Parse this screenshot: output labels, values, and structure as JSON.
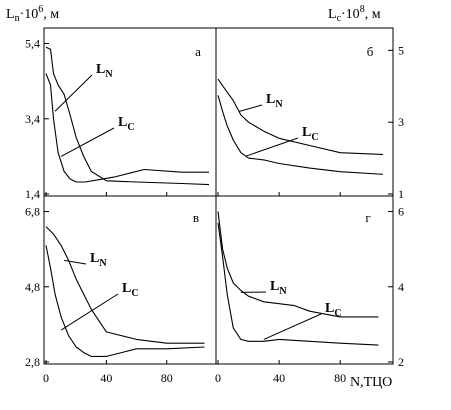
{
  "chart_data": {
    "type": "line",
    "left_axis_title": {
      "main": "L",
      "sub": "n",
      "rest": "·10",
      "sup": "6",
      "unit": ", м"
    },
    "right_axis_title": {
      "main": "L",
      "sub": "c",
      "rest": "·10",
      "sup": "8",
      "unit": ", м"
    },
    "x_axis_title": "N,ТЦО",
    "x_ticks": [
      "0",
      "40",
      "80"
    ],
    "x_tick_values": [
      0,
      40,
      80
    ],
    "xlim": [
      0,
      110
    ],
    "top_left_ticks": [
      "5,4",
      "3,4",
      "1,4"
    ],
    "top_left_tick_values": [
      5.4,
      3.4,
      1.4
    ],
    "top_right_ticks": [
      "5",
      "3",
      "1"
    ],
    "top_right_tick_values": [
      5,
      3,
      1
    ],
    "bottom_left_ticks": [
      "6,8",
      "4,8",
      "2,8"
    ],
    "bottom_left_tick_values": [
      6.8,
      4.8,
      2.8
    ],
    "bottom_right_ticks": [
      "6",
      "4",
      "2"
    ],
    "bottom_right_tick_values": [
      6,
      4,
      2
    ],
    "panels": [
      {
        "id": "a",
        "label": "а",
        "ylim": [
          1.4,
          5.6
        ],
        "series": [
          {
            "name": "LN",
            "x": [
              0,
              3,
              5,
              8,
              12,
              16,
              20,
              25,
              30,
              40,
              60,
              90,
              108
            ],
            "y": [
              5.3,
              5.25,
              4.6,
              4.3,
              4.05,
              3.5,
              2.9,
              2.4,
              2.0,
              1.75,
              1.72,
              1.68,
              1.65
            ]
          },
          {
            "name": "LC",
            "x": [
              0,
              3,
              5,
              8,
              12,
              16,
              20,
              26,
              35,
              45,
              55,
              65,
              90,
              108
            ],
            "y": [
              4.6,
              4.3,
              3.4,
              2.5,
              2.0,
              1.8,
              1.72,
              1.72,
              1.78,
              1.85,
              1.95,
              2.05,
              1.98,
              1.98
            ]
          }
        ],
        "labels": [
          {
            "main": "L",
            "sub": "N",
            "point": [
              6,
              3.6
            ]
          },
          {
            "main": "L",
            "sub": "C",
            "point": [
              10,
              2.4
            ]
          }
        ]
      },
      {
        "id": "b",
        "label": "б",
        "ylim": [
          1.0,
          5.4
        ],
        "series": [
          {
            "name": "LN",
            "x": [
              0,
              5,
              10,
              15,
              20,
              30,
              40,
              60,
              80,
              108
            ],
            "y": [
              4.2,
              3.9,
              3.6,
              3.2,
              3.0,
              2.75,
              2.55,
              2.35,
              2.15,
              2.1
            ]
          },
          {
            "name": "LC",
            "x": [
              0,
              3,
              6,
              10,
              15,
              20,
              30,
              40,
              60,
              80,
              108
            ],
            "y": [
              3.75,
              3.3,
              2.9,
              2.5,
              2.15,
              2.0,
              1.95,
              1.85,
              1.72,
              1.62,
              1.55
            ]
          }
        ],
        "labels": [
          {
            "main": "L",
            "sub": "N",
            "point": [
              14,
              3.3
            ]
          },
          {
            "main": "L",
            "sub": "C",
            "point": [
              18,
              2.05
            ]
          }
        ]
      },
      {
        "id": "c",
        "label": "в",
        "ylim": [
          2.8,
          7.0
        ],
        "series": [
          {
            "name": "LN",
            "x": [
              0,
              5,
              10,
              15,
              20,
              25,
              30,
              40,
              60,
              80,
              105
            ],
            "y": [
              6.4,
              6.2,
              5.9,
              5.5,
              5.0,
              4.6,
              4.2,
              3.6,
              3.4,
              3.3,
              3.3
            ]
          },
          {
            "name": "LC",
            "x": [
              0,
              3,
              6,
              10,
              15,
              20,
              25,
              30,
              40,
              50,
              60,
              80,
              105
            ],
            "y": [
              5.9,
              5.3,
              4.6,
              4.0,
              3.5,
              3.2,
              3.05,
              2.95,
              2.95,
              3.05,
              3.15,
              3.15,
              3.2
            ]
          }
        ],
        "labels": [
          {
            "main": "L",
            "sub": "N",
            "point": [
              12,
              5.5
            ]
          },
          {
            "main": "L",
            "sub": "C",
            "point": [
              10,
              3.65
            ]
          }
        ]
      },
      {
        "id": "d",
        "label": "г",
        "ylim": [
          2.0,
          6.2
        ],
        "series": [
          {
            "name": "LN",
            "x": [
              0,
              3,
              6,
              10,
              15,
              20,
              30,
              40,
              50,
              60,
              80,
              105
            ],
            "y": [
              6.0,
              5.0,
              4.5,
              4.1,
              3.9,
              3.75,
              3.6,
              3.55,
              3.5,
              3.35,
              3.2,
              3.2
            ]
          },
          {
            "name": "LC",
            "x": [
              0,
              3,
              6,
              10,
              15,
              20,
              30,
              40,
              60,
              80,
              105
            ],
            "y": [
              5.7,
              4.8,
              3.8,
              2.9,
              2.6,
              2.55,
              2.55,
              2.6,
              2.55,
              2.5,
              2.45
            ]
          }
        ],
        "labels": [
          {
            "main": "L",
            "sub": "N",
            "point": [
              15,
              3.85
            ]
          },
          {
            "main": "L",
            "sub": "C",
            "point": [
              30,
              2.6
            ]
          }
        ]
      }
    ]
  }
}
